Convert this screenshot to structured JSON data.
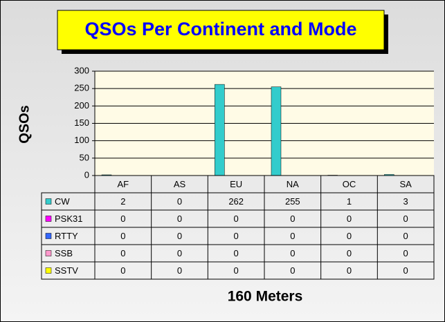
{
  "chart_data": {
    "type": "bar",
    "title": "QSOs Per Continent and Mode",
    "y_label": "QSOs",
    "x_label": "160 Meters",
    "categories": [
      "AF",
      "AS",
      "EU",
      "NA",
      "OC",
      "SA"
    ],
    "series": [
      {
        "name": "CW",
        "color": "#33cccc",
        "values": [
          2,
          0,
          262,
          255,
          1,
          3
        ]
      },
      {
        "name": "PSK31",
        "color": "#ff00ff",
        "values": [
          0,
          0,
          0,
          0,
          0,
          0
        ]
      },
      {
        "name": "RTTY",
        "color": "#3366ff",
        "values": [
          0,
          0,
          0,
          0,
          0,
          0
        ]
      },
      {
        "name": "SSB",
        "color": "#ff99cc",
        "values": [
          0,
          0,
          0,
          0,
          0,
          0
        ]
      },
      {
        "name": "SSTV",
        "color": "#ffff00",
        "values": [
          0,
          0,
          0,
          0,
          0,
          0
        ]
      }
    ],
    "ylim": [
      0,
      300
    ],
    "yticks": [
      0,
      50,
      100,
      150,
      200,
      250,
      300
    ],
    "grid": true
  }
}
